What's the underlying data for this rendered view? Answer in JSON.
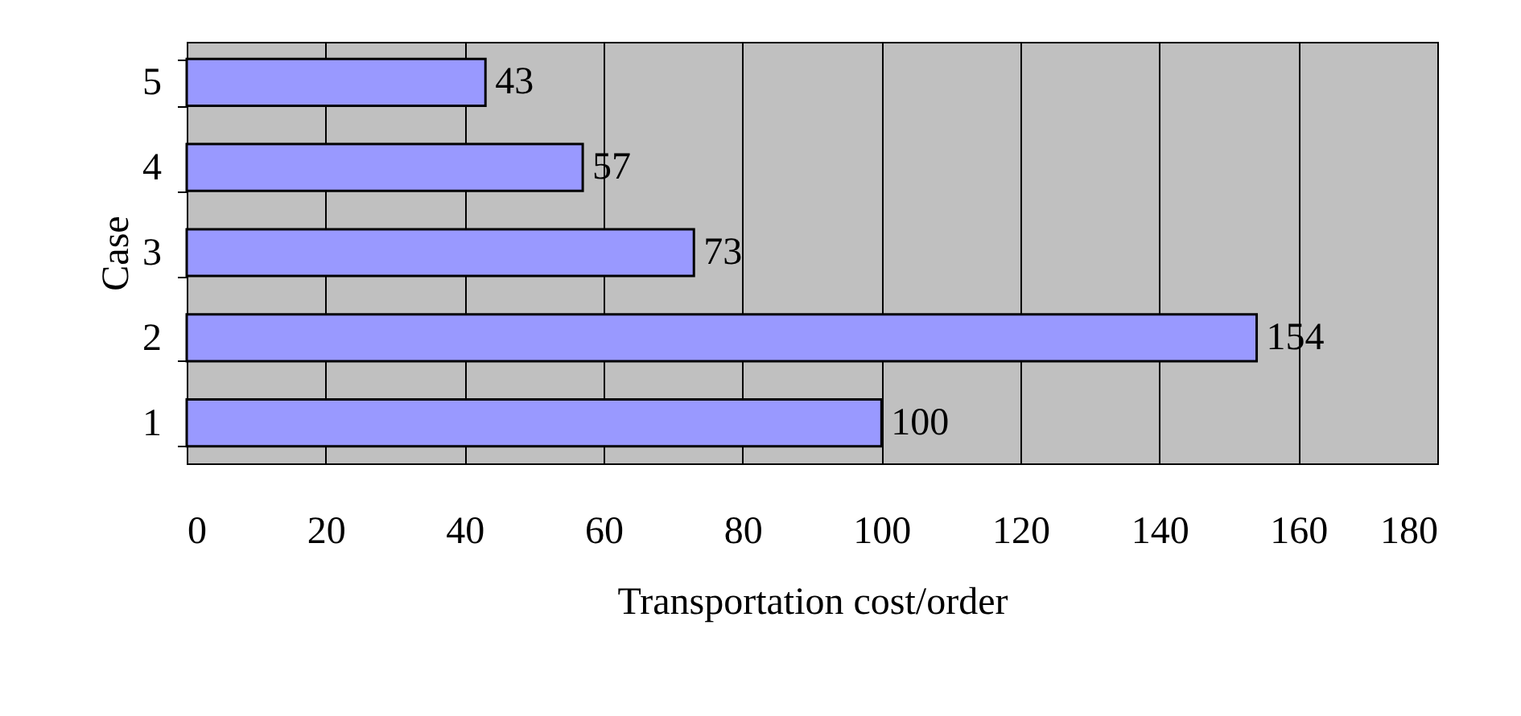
{
  "chart_data": {
    "type": "bar",
    "orientation": "horizontal",
    "xlabel": "Transportation cost/order",
    "ylabel": "Case",
    "categories": [
      "5",
      "4",
      "3",
      "2",
      "1"
    ],
    "values": [
      43,
      57,
      73,
      154,
      100
    ],
    "color": "#9999ff",
    "xlim": [
      0,
      180
    ],
    "xticks": [
      0,
      20,
      40,
      60,
      80,
      100,
      120,
      140,
      160,
      180
    ],
    "grid": "x",
    "data_labels": true
  }
}
